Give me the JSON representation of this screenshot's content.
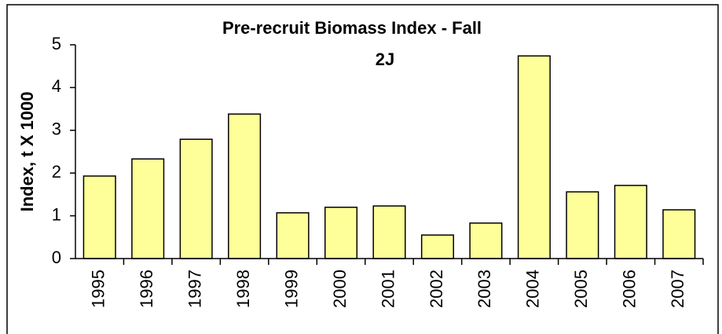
{
  "chart_data": {
    "type": "bar",
    "title": "Pre-recruit Biomass Index - Fall",
    "subtitle": "2J",
    "y_label": "Index, t X 1000",
    "categories": [
      "1995",
      "1996",
      "1997",
      "1998",
      "1999",
      "2000",
      "2001",
      "2002",
      "2003",
      "2004",
      "2005",
      "2006",
      "2007"
    ],
    "values": [
      1.93,
      2.33,
      2.79,
      3.38,
      1.07,
      1.2,
      1.23,
      0.55,
      0.83,
      4.74,
      1.56,
      1.71,
      1.14
    ],
    "color": "#ffff99",
    "ylim": [
      0,
      5
    ],
    "yticks": [
      0,
      1,
      2,
      3,
      4,
      5
    ],
    "grid": false
  }
}
